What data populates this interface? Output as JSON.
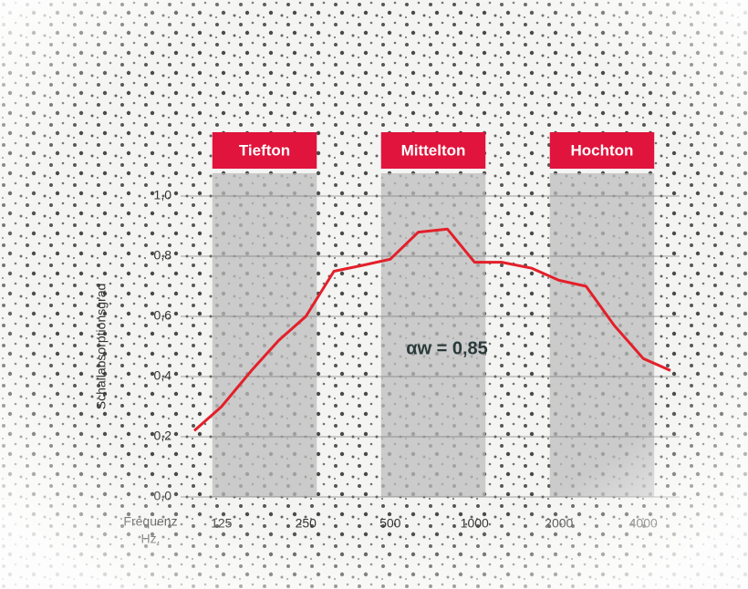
{
  "chart_data": {
    "type": "line",
    "y_label": "Schallabsorptionsgrad",
    "x_label": "Frequenz",
    "x_unit": "Hz.",
    "bands": [
      "Tiefton",
      "Mittelton",
      "Hochton"
    ],
    "annotation": "αw = 0,85",
    "xscale": "log",
    "x": [
      100,
      125,
      160,
      200,
      250,
      315,
      400,
      500,
      630,
      800,
      1000,
      1250,
      1600,
      2000,
      2500,
      3150,
      4000,
      5000
    ],
    "series": [
      {
        "color": "#e3202a",
        "values": [
          0.22,
          0.3,
          0.42,
          0.52,
          0.6,
          0.75,
          0.77,
          0.79,
          0.88,
          0.89,
          0.78,
          0.78,
          0.76,
          0.72,
          0.7,
          0.57,
          0.46,
          0.42
        ]
      }
    ],
    "xlim": [
      100,
      5000
    ],
    "xticks": [
      125,
      250,
      500,
      1000,
      2000,
      4000
    ],
    "ylim": [
      0,
      1
    ],
    "yticks": [
      {
        "value": 0,
        "label": "0,0"
      },
      {
        "value": 0.2,
        "label": "0,2"
      },
      {
        "value": 0.4,
        "label": "0,4"
      },
      {
        "value": 0.6,
        "label": "0,6"
      },
      {
        "value": 0.8,
        "label": "0,8"
      },
      {
        "value": 1,
        "label": "1,0"
      }
    ],
    "grid": true,
    "band_color": "#e0143c"
  }
}
